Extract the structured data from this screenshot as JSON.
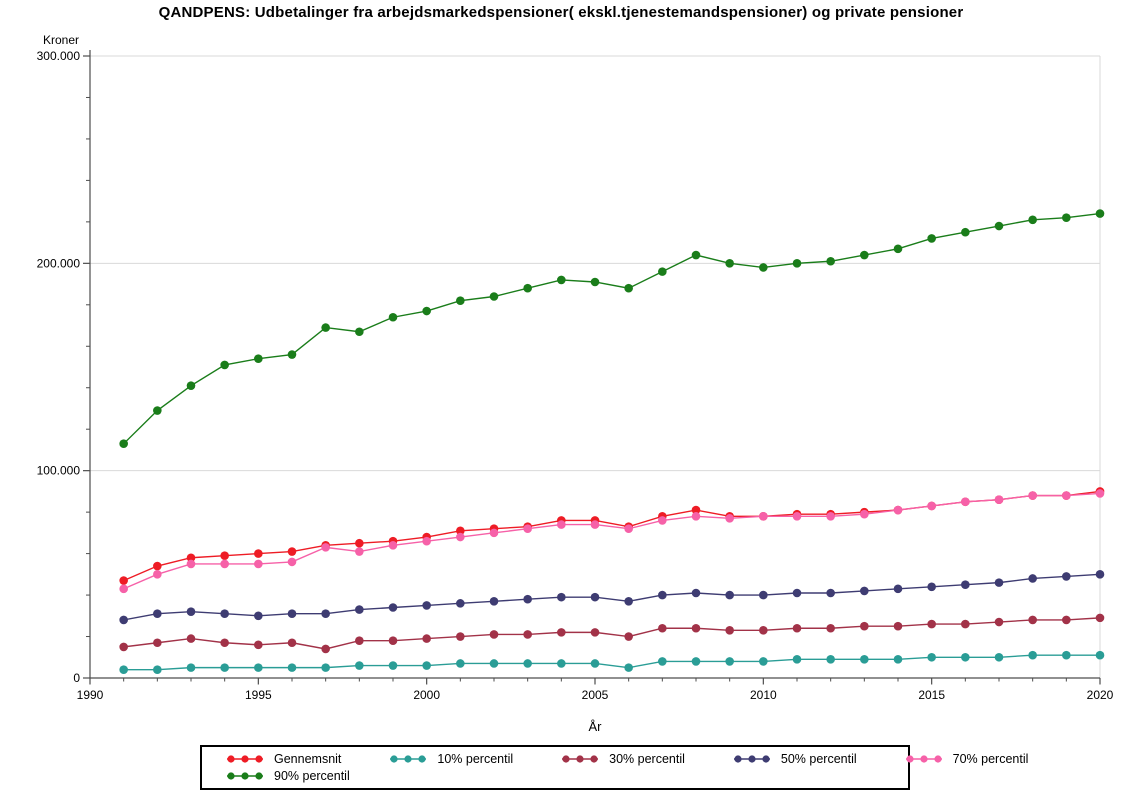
{
  "title": "QANDPENS: Udbetalinger fra arbejdsmarkedspensioner( ekskl.tjenestemandspensioner) og private pensioner",
  "chart_data": {
    "type": "line",
    "title": "QANDPENS: Udbetalinger fra arbejdsmarkedspensioner( ekskl.tjenestemandspensioner) og private pensioner",
    "xlabel": "År",
    "ylabel": "Kroner",
    "xlim": [
      1990,
      2020
    ],
    "ylim": [
      0,
      300000
    ],
    "x_major_ticks": [
      1990,
      1995,
      2000,
      2005,
      2010,
      2015,
      2020
    ],
    "x_tick_labels": [
      "1990",
      "1995",
      "2000",
      "2005",
      "2010",
      "2015",
      "2020"
    ],
    "x_minor_step": 1,
    "y_major_ticks": [
      0,
      100000,
      200000,
      300000
    ],
    "y_tick_labels": [
      "0",
      "100.000",
      "200.000",
      "300.000"
    ],
    "y_minor_step": 20000,
    "grid": "horizontal-major",
    "legend_position": "bottom-box",
    "x": [
      1991,
      1992,
      1993,
      1994,
      1995,
      1996,
      1997,
      1998,
      1999,
      2000,
      2001,
      2002,
      2003,
      2004,
      2005,
      2006,
      2007,
      2008,
      2009,
      2010,
      2011,
      2012,
      2013,
      2014,
      2015,
      2016,
      2017,
      2018,
      2019,
      2020
    ],
    "series": [
      {
        "name": "Gennemsnit",
        "color": "#ee1c25",
        "values": [
          47000,
          54000,
          58000,
          59000,
          60000,
          61000,
          64000,
          65000,
          66000,
          68000,
          71000,
          72000,
          73000,
          76000,
          76000,
          73000,
          78000,
          81000,
          78000,
          78000,
          79000,
          79000,
          80000,
          81000,
          83000,
          85000,
          86000,
          88000,
          88000,
          90000
        ]
      },
      {
        "name": "10% percentil",
        "color": "#2a9d96",
        "values": [
          4000,
          4000,
          5000,
          5000,
          5000,
          5000,
          5000,
          6000,
          6000,
          6000,
          7000,
          7000,
          7000,
          7000,
          7000,
          5000,
          8000,
          8000,
          8000,
          8000,
          9000,
          9000,
          9000,
          9000,
          10000,
          10000,
          10000,
          11000,
          11000,
          11000
        ]
      },
      {
        "name": "30% percentil",
        "color": "#a23248",
        "values": [
          15000,
          17000,
          19000,
          17000,
          16000,
          17000,
          14000,
          18000,
          18000,
          19000,
          20000,
          21000,
          21000,
          22000,
          22000,
          20000,
          24000,
          24000,
          23000,
          23000,
          24000,
          24000,
          25000,
          25000,
          26000,
          26000,
          27000,
          28000,
          28000,
          29000
        ]
      },
      {
        "name": "50% percentil",
        "color": "#3e3c72",
        "values": [
          28000,
          31000,
          32000,
          31000,
          30000,
          31000,
          31000,
          33000,
          34000,
          35000,
          36000,
          37000,
          38000,
          39000,
          39000,
          37000,
          40000,
          41000,
          40000,
          40000,
          41000,
          41000,
          42000,
          43000,
          44000,
          45000,
          46000,
          48000,
          49000,
          50000
        ]
      },
      {
        "name": "70% percentil",
        "color": "#f661a8",
        "values": [
          43000,
          50000,
          55000,
          55000,
          55000,
          56000,
          63000,
          61000,
          64000,
          66000,
          68000,
          70000,
          72000,
          74000,
          74000,
          72000,
          76000,
          78000,
          77000,
          78000,
          78000,
          78000,
          79000,
          81000,
          83000,
          85000,
          86000,
          88000,
          88000,
          89000
        ]
      },
      {
        "name": "90% percentil",
        "color": "#1a7d1a",
        "values": [
          113000,
          129000,
          141000,
          151000,
          154000,
          156000,
          169000,
          167000,
          174000,
          177000,
          182000,
          184000,
          188000,
          192000,
          191000,
          188000,
          196000,
          204000,
          200000,
          198000,
          200000,
          201000,
          204000,
          207000,
          212000,
          215000,
          218000,
          221000,
          222000,
          224000
        ]
      }
    ],
    "legend_rows": [
      5,
      1
    ]
  },
  "colors": {
    "axis": "#4d4d4d",
    "gridline": "#d9d9d9",
    "legend_border": "#000000"
  }
}
